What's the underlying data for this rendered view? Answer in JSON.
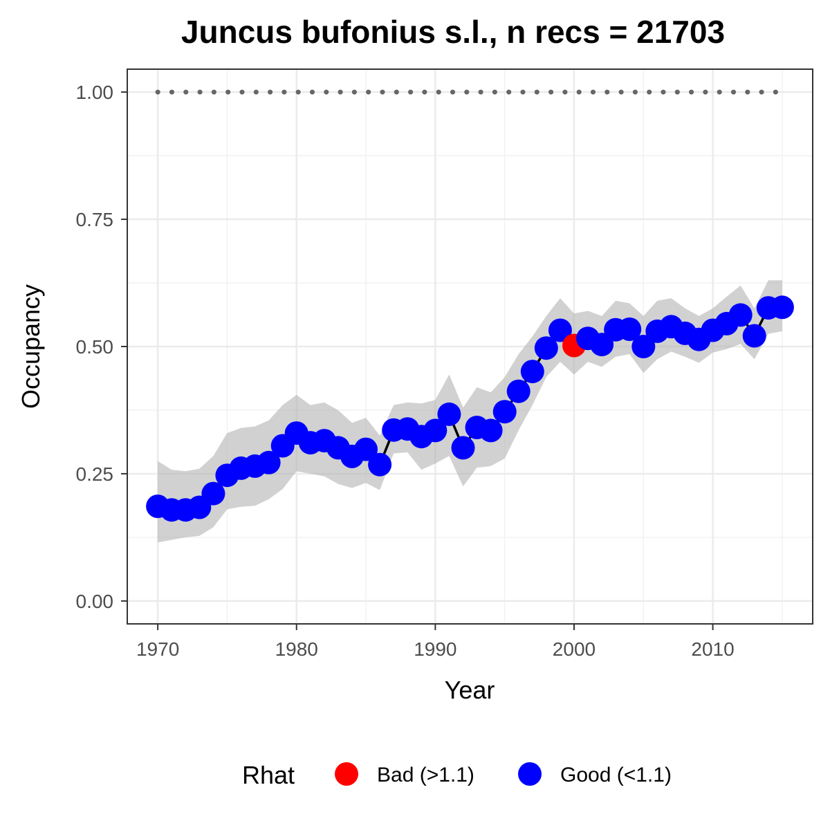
{
  "chart_data": {
    "type": "line",
    "title": "Juncus bufonius s.l., n recs = 21703",
    "xlabel": "Year",
    "ylabel": "Occupancy",
    "xlim": [
      1967.8,
      2017.2
    ],
    "ylim": [
      -0.045,
      1.045
    ],
    "x_ticks": [
      1970,
      1980,
      1990,
      2000,
      2010
    ],
    "y_ticks": [
      0.0,
      0.25,
      0.5,
      0.75,
      1.0
    ],
    "y_tick_labels": [
      "0.00",
      "0.25",
      "0.50",
      "0.75",
      "1.00"
    ],
    "grid": true,
    "legend": {
      "title": "Rhat",
      "position": "bottom",
      "entries": [
        {
          "label": "Bad (>1.1)",
          "color": "#ff0000"
        },
        {
          "label": "Good (<1.1)",
          "color": "#0000ff"
        }
      ]
    },
    "colors": {
      "good": "#0000ff",
      "bad": "#ff0000",
      "ribbon": "#b3b3b3",
      "line": "#000000",
      "reference": "#666666"
    },
    "reference_line": {
      "y": 1.0,
      "style": "dotted"
    },
    "series": [
      {
        "x": [
          1970,
          1971,
          1972,
          1973,
          1974,
          1975,
          1976,
          1977,
          1978,
          1979,
          1980,
          1981,
          1982,
          1983,
          1984,
          1985,
          1986,
          1987,
          1988,
          1989,
          1990,
          1991,
          1992,
          1993,
          1994,
          1995,
          1996,
          1997,
          1998,
          1999,
          2000,
          2001,
          2002,
          2003,
          2004,
          2005,
          2006,
          2007,
          2008,
          2009,
          2010,
          2011,
          2012,
          2013,
          2014,
          2015
        ],
        "values": [
          0.186,
          0.179,
          0.179,
          0.184,
          0.211,
          0.247,
          0.261,
          0.265,
          0.272,
          0.305,
          0.33,
          0.311,
          0.315,
          0.301,
          0.284,
          0.298,
          0.268,
          0.336,
          0.338,
          0.323,
          0.335,
          0.367,
          0.301,
          0.341,
          0.335,
          0.372,
          0.412,
          0.451,
          0.497,
          0.532,
          0.502,
          0.516,
          0.504,
          0.533,
          0.534,
          0.5,
          0.53,
          0.539,
          0.526,
          0.514,
          0.532,
          0.545,
          0.562,
          0.521,
          0.576,
          0.577
        ],
        "lower": [
          0.115,
          0.12,
          0.125,
          0.128,
          0.145,
          0.18,
          0.185,
          0.187,
          0.2,
          0.22,
          0.255,
          0.25,
          0.245,
          0.23,
          0.222,
          0.232,
          0.218,
          0.29,
          0.292,
          0.258,
          0.27,
          0.285,
          0.225,
          0.262,
          0.265,
          0.28,
          0.335,
          0.385,
          0.44,
          0.47,
          0.445,
          0.47,
          0.46,
          0.48,
          0.485,
          0.448,
          0.475,
          0.49,
          0.48,
          0.468,
          0.488,
          0.495,
          0.505,
          0.475,
          0.525,
          0.53
        ],
        "upper": [
          0.275,
          0.258,
          0.255,
          0.26,
          0.285,
          0.33,
          0.34,
          0.343,
          0.355,
          0.385,
          0.405,
          0.385,
          0.39,
          0.375,
          0.35,
          0.36,
          0.325,
          0.385,
          0.39,
          0.388,
          0.395,
          0.445,
          0.38,
          0.42,
          0.41,
          0.44,
          0.485,
          0.52,
          0.56,
          0.595,
          0.565,
          0.57,
          0.56,
          0.59,
          0.585,
          0.56,
          0.59,
          0.595,
          0.575,
          0.56,
          0.575,
          0.598,
          0.62,
          0.575,
          0.63,
          0.63
        ],
        "rhat": [
          "good",
          "good",
          "good",
          "good",
          "good",
          "good",
          "good",
          "good",
          "good",
          "good",
          "good",
          "good",
          "good",
          "good",
          "good",
          "good",
          "good",
          "good",
          "good",
          "good",
          "good",
          "good",
          "good",
          "good",
          "good",
          "good",
          "good",
          "good",
          "good",
          "good",
          "bad",
          "good",
          "good",
          "good",
          "good",
          "good",
          "good",
          "good",
          "good",
          "good",
          "good",
          "good",
          "good",
          "good",
          "good",
          "good"
        ]
      }
    ]
  }
}
